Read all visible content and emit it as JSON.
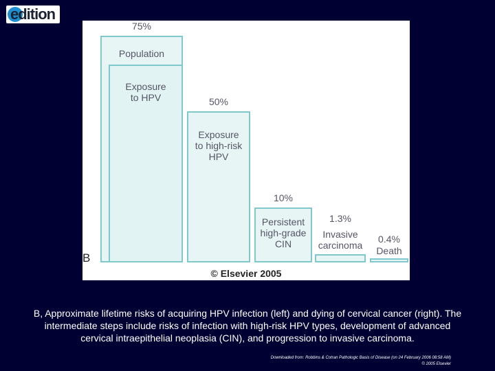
{
  "logo": {
    "text": "edition",
    "brand_color": "#1e8fd0"
  },
  "figure": {
    "panel_label": "B",
    "copyright": "© Elsevier 2005",
    "bars": [
      {
        "percent": "75%",
        "label": "Population",
        "value": 75
      },
      {
        "percent": "",
        "label": "Exposure\nto HPV",
        "value": 72
      },
      {
        "percent": "50%",
        "label": "Exposure\nto high-risk\nHPV",
        "value": 50
      },
      {
        "percent": "10%",
        "label": "Persistent\nhigh-grade\nCIN",
        "value": 10
      },
      {
        "percent": "1.3%",
        "label": "Invasive\ncarcinoma",
        "value": 1.3
      },
      {
        "percent": "0.4%",
        "label": "Death",
        "value": 0.4
      }
    ],
    "bar_color": "#7fc9cc"
  },
  "caption": "B, Approximate lifetime risks of acquiring HPV infection (left) and dying of cervical cancer (right). The intermediate steps include risks of infection with high-risk HPV types, development of advanced cervical intraepithelial neoplasia (CIN), and progression to invasive carcinoma.",
  "source": {
    "line1": "Downloaded from: Robbins & Cotran Pathologic Basis of Disease (on 24 February 2006 08:58 AM)",
    "line2": "© 2005 Elsevier"
  }
}
